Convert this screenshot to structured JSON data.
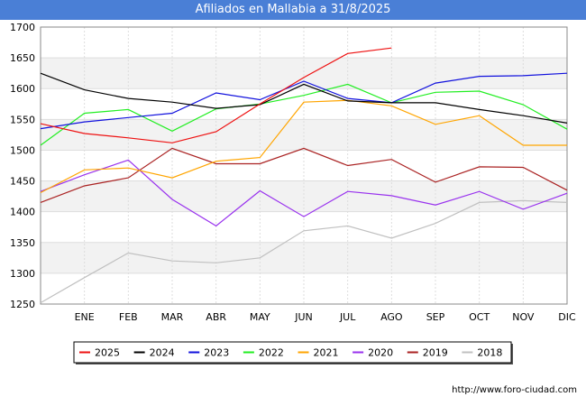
{
  "chart_data": {
    "type": "line",
    "title": "Afiliados en Mallabia a 31/8/2025",
    "categories": [
      "",
      "ENE",
      "FEB",
      "MAR",
      "ABR",
      "MAY",
      "JUN",
      "JUL",
      "AGO",
      "SEP",
      "OCT",
      "NOV",
      "DIC"
    ],
    "ylim": [
      1250,
      1700
    ],
    "yticks": [
      1250,
      1300,
      1350,
      1400,
      1450,
      1500,
      1550,
      1600,
      1650,
      1700
    ],
    "grid": true,
    "legend_position": "bottom",
    "series": [
      {
        "name": "2025",
        "color": "#ee1111",
        "values": [
          1543,
          1527,
          1520,
          1512,
          1530,
          1575,
          1618,
          1657,
          1666,
          null,
          null,
          null,
          null
        ]
      },
      {
        "name": "2024",
        "color": "#000000",
        "values": [
          1625,
          1598,
          1584,
          1578,
          1568,
          1574,
          1607,
          1580,
          1577,
          1577,
          1566,
          1556,
          1544
        ]
      },
      {
        "name": "2023",
        "color": "#1111dd",
        "values": [
          1535,
          1546,
          1553,
          1560,
          1593,
          1582,
          1612,
          1584,
          1577,
          1609,
          1620,
          1621,
          1625
        ]
      },
      {
        "name": "2022",
        "color": "#22ee22",
        "values": [
          1508,
          1560,
          1566,
          1531,
          1567,
          1575,
          1589,
          1607,
          1577,
          1594,
          1596,
          1574,
          1534
        ]
      },
      {
        "name": "2021",
        "color": "#ffa500",
        "values": [
          1431,
          1468,
          1471,
          1455,
          1482,
          1488,
          1578,
          1581,
          1572,
          1542,
          1556,
          1508,
          1508
        ]
      },
      {
        "name": "2020",
        "color": "#9932ee",
        "values": [
          1433,
          1460,
          1484,
          1420,
          1377,
          1434,
          1392,
          1433,
          1426,
          1411,
          1433,
          1404,
          1430
        ]
      },
      {
        "name": "2019",
        "color": "#aa2222",
        "values": [
          1415,
          1442,
          1455,
          1503,
          1478,
          1478,
          1503,
          1475,
          1485,
          1448,
          1473,
          1472,
          1435
        ]
      },
      {
        "name": "2018",
        "color": "#c0c0c0",
        "values": [
          1252,
          1293,
          1333,
          1320,
          1317,
          1325,
          1369,
          1377,
          1357,
          1381,
          1415,
          1418,
          1415
        ]
      }
    ]
  },
  "footer": {
    "source": "http://www.foro-ciudad.com"
  }
}
